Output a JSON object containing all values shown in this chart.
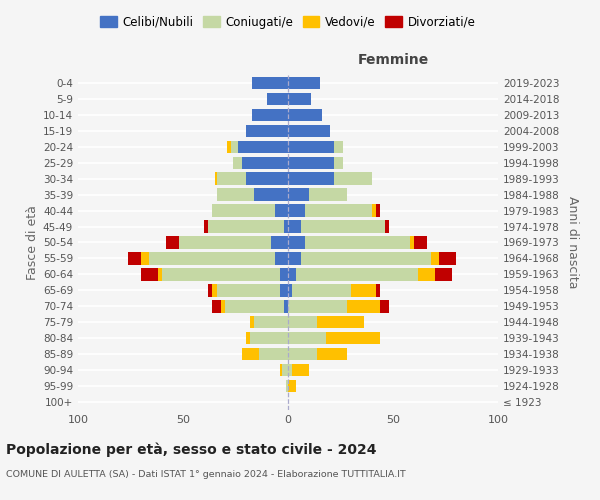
{
  "age_groups": [
    "100+",
    "95-99",
    "90-94",
    "85-89",
    "80-84",
    "75-79",
    "70-74",
    "65-69",
    "60-64",
    "55-59",
    "50-54",
    "45-49",
    "40-44",
    "35-39",
    "30-34",
    "25-29",
    "20-24",
    "15-19",
    "10-14",
    "5-9",
    "0-4"
  ],
  "birth_years": [
    "≤ 1923",
    "1924-1928",
    "1929-1933",
    "1934-1938",
    "1939-1943",
    "1944-1948",
    "1949-1953",
    "1954-1958",
    "1959-1963",
    "1964-1968",
    "1969-1973",
    "1974-1978",
    "1979-1983",
    "1984-1988",
    "1989-1993",
    "1994-1998",
    "1999-2003",
    "2004-2008",
    "2009-2013",
    "2014-2018",
    "2019-2023"
  ],
  "male": {
    "celibi": [
      0,
      0,
      0,
      0,
      0,
      0,
      2,
      4,
      4,
      6,
      8,
      2,
      6,
      16,
      20,
      22,
      24,
      20,
      17,
      10,
      17
    ],
    "coniugati": [
      0,
      1,
      3,
      14,
      18,
      16,
      28,
      30,
      56,
      60,
      44,
      36,
      30,
      18,
      14,
      4,
      3,
      0,
      0,
      0,
      0
    ],
    "vedovi": [
      0,
      0,
      1,
      8,
      2,
      2,
      2,
      2,
      2,
      4,
      0,
      0,
      0,
      0,
      1,
      0,
      2,
      0,
      0,
      0,
      0
    ],
    "divorziati": [
      0,
      0,
      0,
      0,
      0,
      0,
      4,
      2,
      8,
      6,
      6,
      2,
      0,
      0,
      0,
      0,
      0,
      0,
      0,
      0,
      0
    ]
  },
  "female": {
    "nubili": [
      0,
      0,
      0,
      0,
      0,
      0,
      0,
      2,
      4,
      6,
      8,
      6,
      8,
      10,
      22,
      22,
      22,
      20,
      16,
      11,
      15
    ],
    "coniugate": [
      0,
      0,
      2,
      14,
      18,
      14,
      28,
      28,
      58,
      62,
      50,
      40,
      32,
      18,
      18,
      4,
      4,
      0,
      0,
      0,
      0
    ],
    "vedove": [
      0,
      4,
      8,
      14,
      26,
      22,
      16,
      12,
      8,
      4,
      2,
      0,
      2,
      0,
      0,
      0,
      0,
      0,
      0,
      0,
      0
    ],
    "divorziate": [
      0,
      0,
      0,
      0,
      0,
      0,
      4,
      2,
      8,
      8,
      6,
      2,
      2,
      0,
      0,
      0,
      0,
      0,
      0,
      0,
      0
    ]
  },
  "colors": {
    "celibi": "#4472c4",
    "coniugati": "#c5d8a4",
    "vedovi": "#ffc000",
    "divorziati": "#c00000"
  },
  "xlim": 100,
  "title": "Popolazione per età, sesso e stato civile - 2024",
  "subtitle": "COMUNE DI AULETTA (SA) - Dati ISTAT 1° gennaio 2024 - Elaborazione TUTTITALIA.IT",
  "xlabel_right": "Femmine",
  "ylabel_left": "Fasce di età",
  "ylabel_right": "Anni di nascita",
  "legend_labels": [
    "Celibi/Nubili",
    "Coniugati/e",
    "Vedovi/e",
    "Divorziati/e"
  ],
  "bg_color": "#f5f5f5"
}
